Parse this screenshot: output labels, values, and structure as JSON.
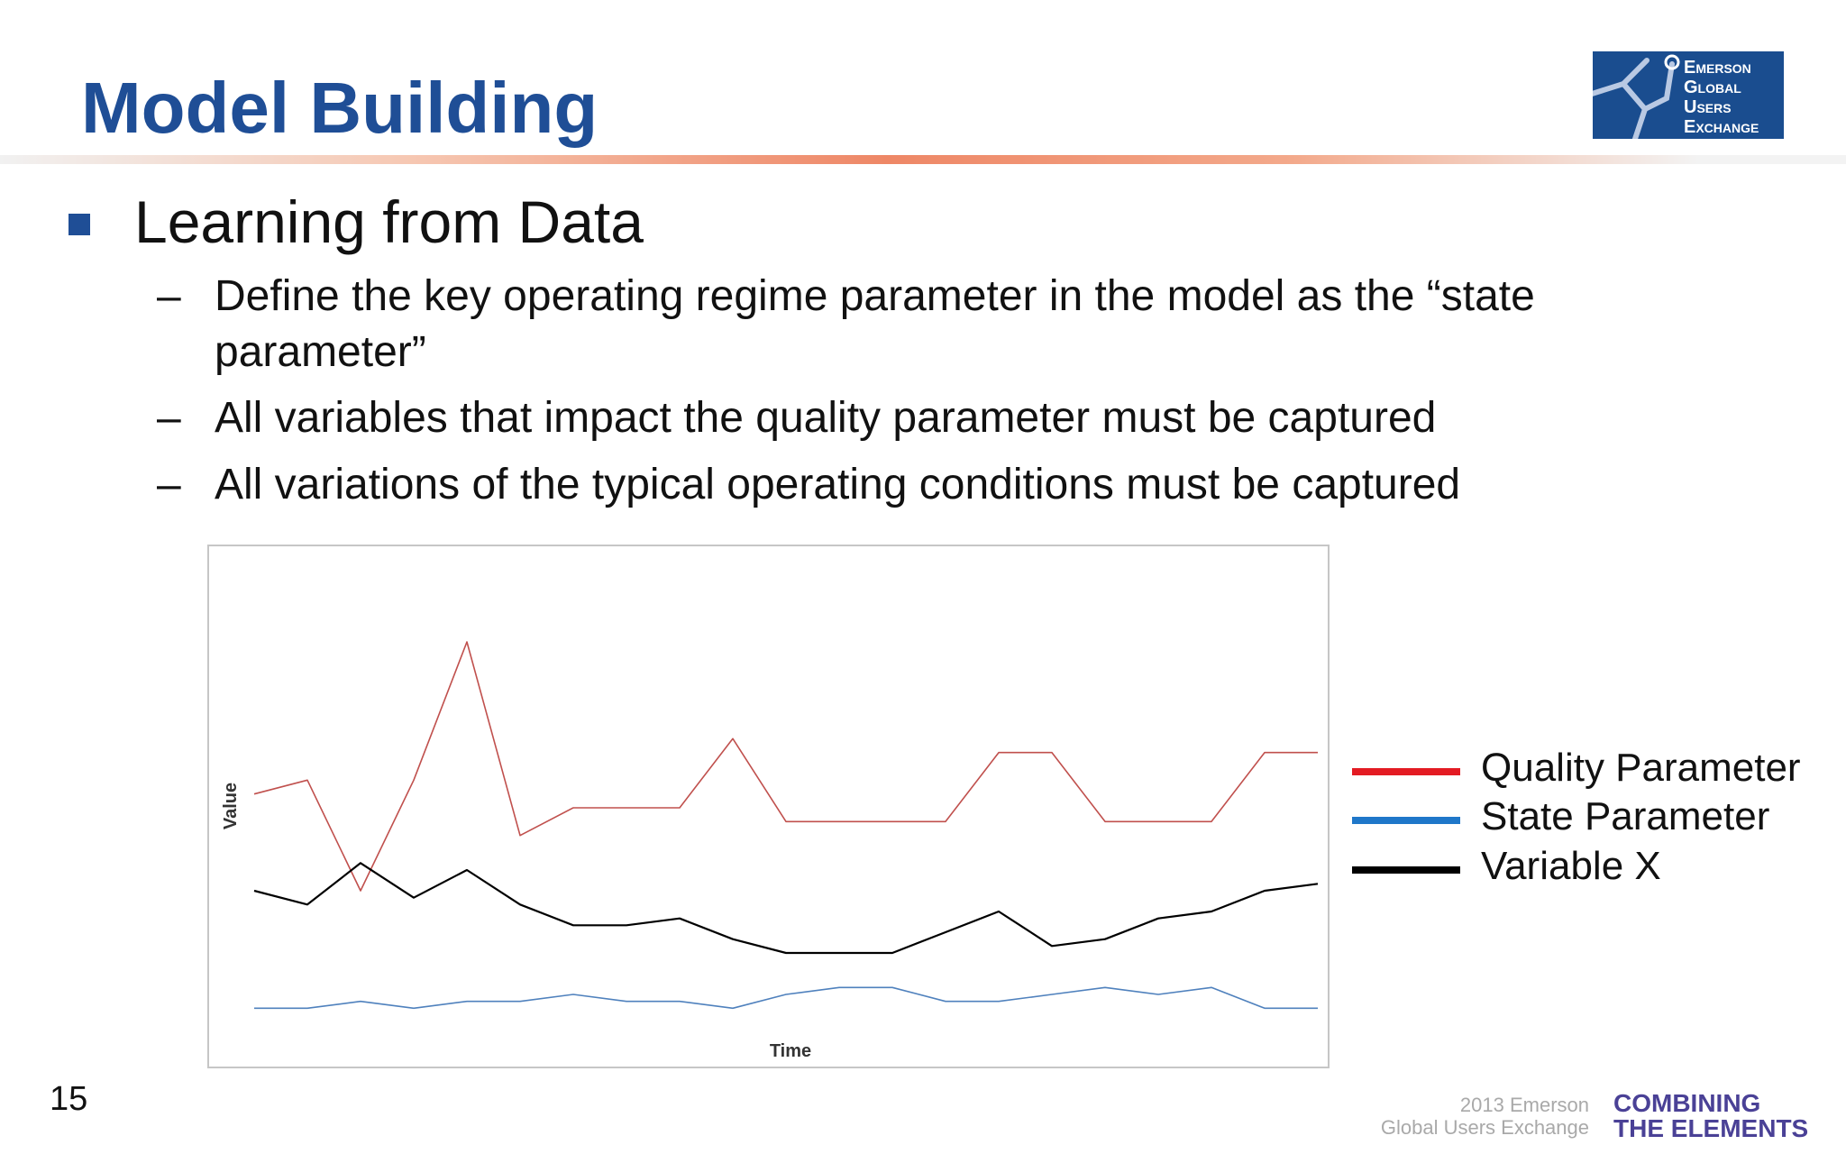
{
  "slide": {
    "title": "Model Building",
    "bullet": "Learning from Data",
    "subbullets": [
      "Define the key operating regime parameter in the model as the “state parameter”",
      "All variables that impact the quality parameter must be captured",
      "All variations of the typical operating conditions must be captured"
    ],
    "dash": "–",
    "page_number": "15"
  },
  "logo": {
    "lines": [
      "Emerson",
      "Global",
      "Users",
      "Exchange"
    ]
  },
  "footer": {
    "line1_small": "2013 Emerson",
    "line2_small": "Global Users Exchange",
    "line1_big": "COMBINING",
    "line2_big": "THE ELEMENTS"
  },
  "colors": {
    "title": "#1f4e96",
    "quality": "#c0504d",
    "state": "#4f81bd",
    "variable": "#000000",
    "legend_quality": "#e31b23",
    "legend_state": "#1f77c9",
    "legend_variable": "#000000"
  },
  "chart_data": {
    "type": "line",
    "title": "",
    "xlabel": "Time",
    "ylabel": "Value",
    "grid": false,
    "axis_ticks": false,
    "legend_position": "right",
    "x": [
      0,
      5,
      10,
      15,
      20,
      25,
      30,
      35,
      40,
      45,
      50,
      55,
      60,
      65,
      70,
      75,
      80,
      85,
      90,
      95,
      100
    ],
    "series": [
      {
        "name": "Quality Parameter",
        "color_key": "quality",
        "values": [
          1.6,
          1.7,
          0.9,
          1.7,
          2.7,
          1.3,
          1.5,
          1.5,
          1.5,
          2.0,
          1.4,
          1.4,
          1.4,
          1.4,
          1.9,
          1.9,
          1.4,
          1.4,
          1.4,
          1.9,
          1.9
        ]
      },
      {
        "name": "Variable X",
        "color_key": "variable",
        "values": [
          0.9,
          0.8,
          1.1,
          0.85,
          1.05,
          0.8,
          0.65,
          0.65,
          0.7,
          0.55,
          0.45,
          0.45,
          0.45,
          0.6,
          0.75,
          0.5,
          0.55,
          0.7,
          0.75,
          0.9,
          0.95
        ]
      },
      {
        "name": "State Parameter",
        "color_key": "state",
        "values": [
          0.05,
          0.05,
          0.1,
          0.05,
          0.1,
          0.1,
          0.15,
          0.1,
          0.1,
          0.05,
          0.15,
          0.2,
          0.2,
          0.1,
          0.1,
          0.15,
          0.2,
          0.15,
          0.2,
          0.05,
          0.05
        ]
      }
    ],
    "legend": [
      "Quality Parameter",
      "State Parameter",
      "Variable X"
    ]
  }
}
